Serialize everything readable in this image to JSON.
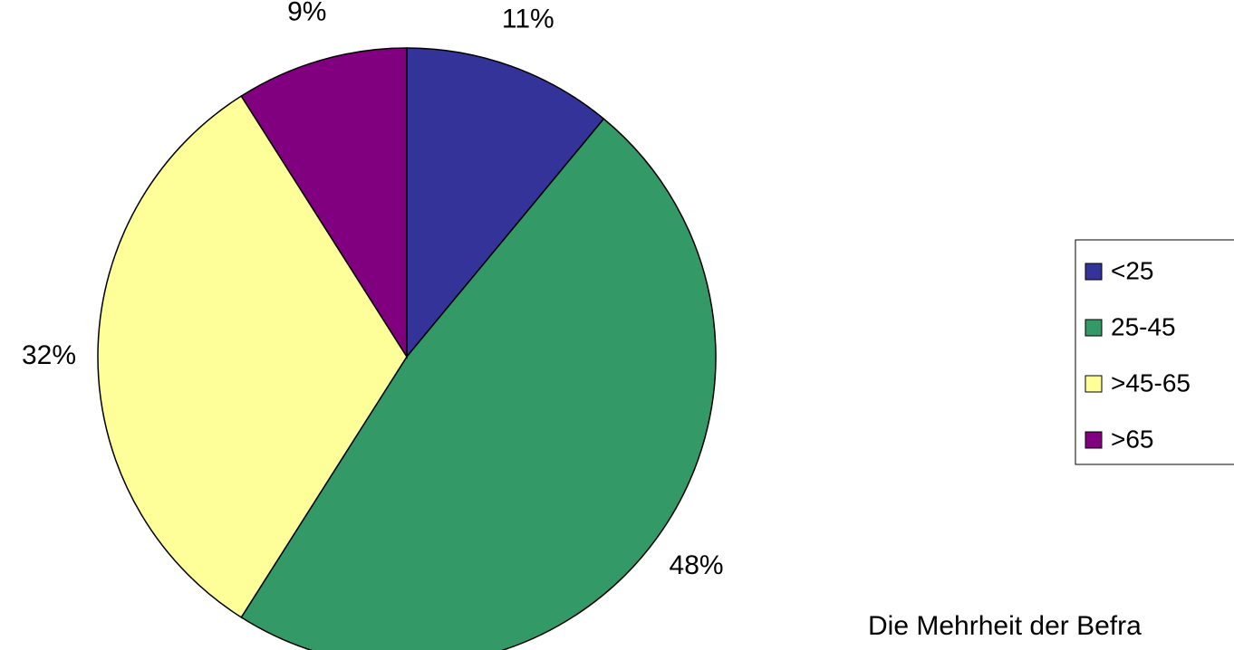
{
  "chart_data": {
    "type": "pie",
    "categories": [
      "<25",
      "25-45",
      ">45-65",
      ">65"
    ],
    "values": [
      11,
      48,
      32,
      9
    ],
    "value_labels": [
      "11%",
      "48%",
      "32%",
      "9%"
    ],
    "colors": [
      "#333399",
      "#339966",
      "#ffff99",
      "#800080"
    ],
    "legend": "right",
    "annotation": "Die Mehrheit der Befra"
  }
}
